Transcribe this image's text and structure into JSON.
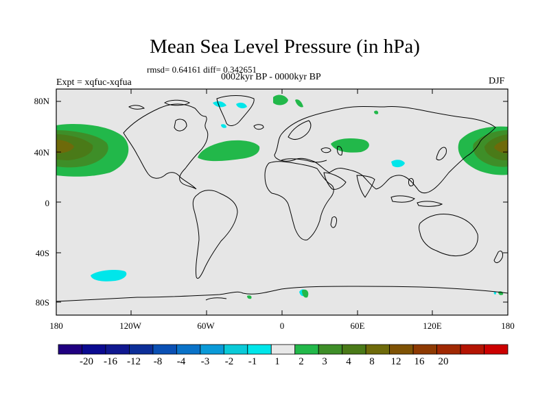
{
  "title": "Mean Sea Level Pressure (in hPa)",
  "stats": "rmsd= 0.64161 diff= 0.342651",
  "period": "0002kyr BP - 0000kyr BP",
  "experiment": "Expt = xqfuc-xqfua",
  "season": "DJF",
  "map": {
    "lon_range": [
      -180,
      180
    ],
    "lat_range": [
      -90,
      90
    ],
    "y_ticks": [
      "80N",
      "40N",
      "0",
      "40S",
      "80S"
    ],
    "x_ticks": [
      "180",
      "120W",
      "60W",
      "0",
      "60E",
      "120E",
      "180"
    ],
    "background_color": "#e6e6e6"
  },
  "colorbar": {
    "labels": [
      "-20",
      "-16",
      "-12",
      "-8",
      "-4",
      "-3",
      "-2",
      "-1",
      "1",
      "2",
      "3",
      "4",
      "8",
      "12",
      "16",
      "20"
    ],
    "colors": [
      "#200080",
      "#0a0a90",
      "#101890",
      "#0c2e98",
      "#0a50b4",
      "#0a72c8",
      "#0a9ad8",
      "#0acad8",
      "#00e6ea",
      "#e8e8e8",
      "#22b84a",
      "#3e8e28",
      "#4a7a18",
      "#6e6a0a",
      "#7e5204",
      "#8e3a02",
      "#a02802",
      "#b41402",
      "#cc0000"
    ]
  }
}
